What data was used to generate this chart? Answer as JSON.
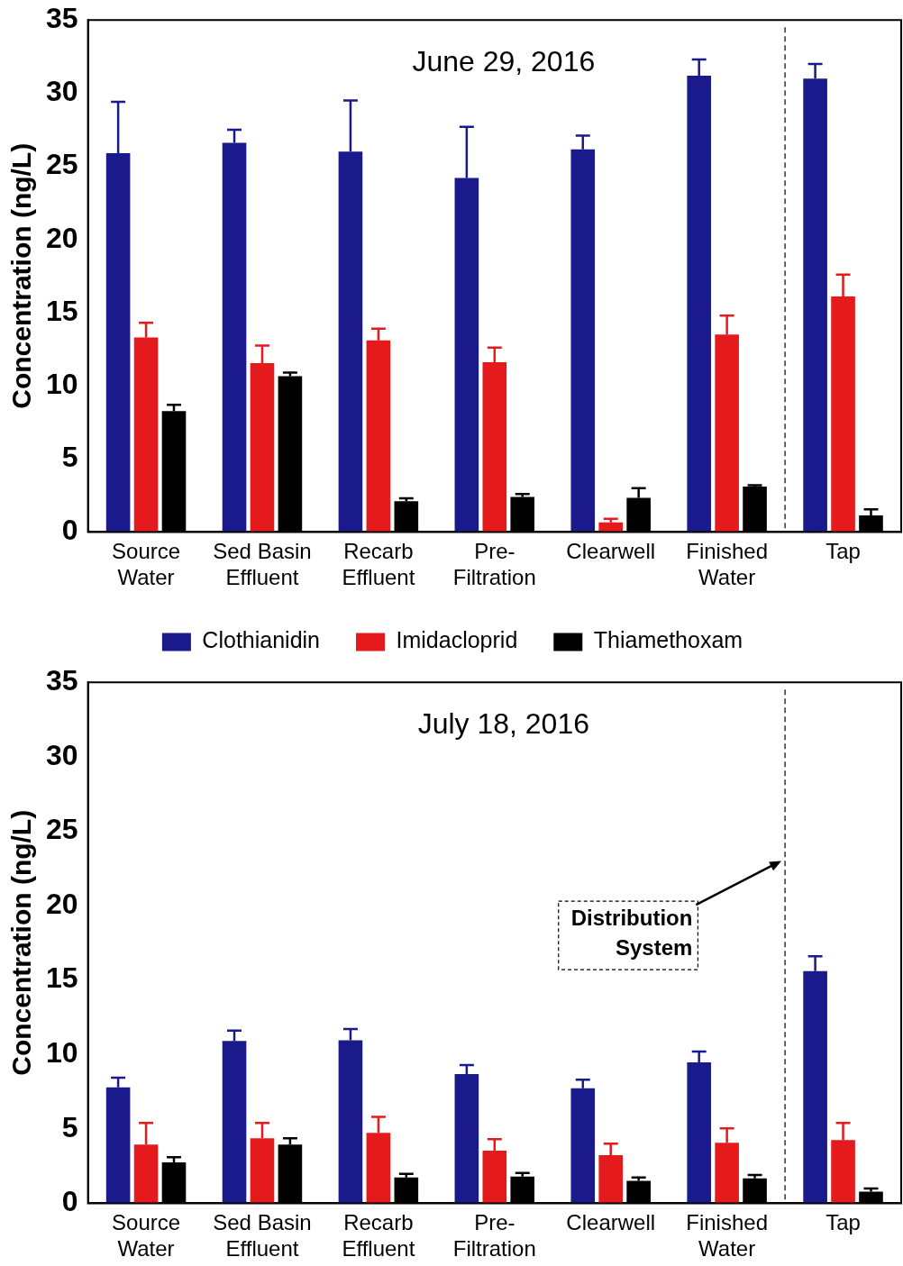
{
  "chart_data": [
    {
      "type": "bar",
      "title": "June 29, 2016",
      "ylabel": "Concentration (ng/L)",
      "categories": [
        "Source Water",
        "Sed Basin Effluent",
        "Recarb Effluent",
        "Pre-Filtration",
        "Clearwell",
        "Finished Water",
        "Tap"
      ],
      "series": [
        {
          "name": "Clothianidin",
          "color": "#1a1a8c",
          "values": [
            25.9,
            26.6,
            26.0,
            24.2,
            26.15,
            31.2,
            31.0
          ],
          "errors": [
            [
              25.9,
              29.4
            ],
            [
              26.6,
              27.5
            ],
            [
              26.0,
              29.5
            ],
            [
              24.2,
              27.7
            ],
            [
              26.15,
              27.1
            ],
            [
              31.2,
              32.3
            ],
            [
              31.0,
              32.0
            ]
          ]
        },
        {
          "name": "Imidacloprid",
          "color": "#e41a1c",
          "values": [
            13.3,
            11.55,
            13.1,
            11.6,
            0.66,
            13.5,
            16.1
          ],
          "errors": [
            [
              13.3,
              14.3
            ],
            [
              11.55,
              12.75
            ],
            [
              13.1,
              13.9
            ],
            [
              11.6,
              12.6
            ],
            [
              0.66,
              0.9
            ],
            [
              13.5,
              14.8
            ],
            [
              16.1,
              17.6
            ]
          ]
        },
        {
          "name": "Thiamethoxam",
          "color": "#000000",
          "values": [
            8.26,
            10.65,
            2.1,
            2.4,
            2.33,
            3.1,
            1.14
          ],
          "errors": [
            [
              8.26,
              8.7
            ],
            [
              10.65,
              10.9
            ],
            [
              2.1,
              2.3
            ],
            [
              2.4,
              2.6
            ],
            [
              2.33,
              3.0
            ],
            [
              3.1,
              3.2
            ],
            [
              1.14,
              1.55
            ]
          ]
        }
      ],
      "ylim": [
        0,
        35
      ],
      "yticks": [
        0,
        5,
        10,
        15,
        20,
        25,
        30,
        35
      ],
      "legend": "bottom"
    },
    {
      "type": "bar",
      "title": "July 18, 2016",
      "ylabel": "Concentration (ng/L)",
      "categories": [
        "Source Water",
        "Sed Basin Effluent",
        "Recarb Effluent",
        "Pre-Filtration",
        "Clearwell",
        "Finished Water",
        "Tap"
      ],
      "series": [
        {
          "color": "#1a1a8c",
          "values": [
            7.78,
            10.9,
            10.95,
            8.68,
            7.72,
            9.46,
            15.6
          ],
          "errors": [
            [
              7.78,
              8.44
            ],
            [
              10.9,
              11.6
            ],
            [
              10.95,
              11.7
            ],
            [
              8.68,
              9.28
            ],
            [
              7.72,
              8.3
            ],
            [
              9.46,
              10.2
            ],
            [
              15.6,
              16.6
            ]
          ]
        },
        {
          "color": "#e41a1c",
          "values": [
            3.95,
            4.37,
            4.73,
            3.53,
            3.23,
            4.07,
            4.25
          ],
          "errors": [
            [
              3.95,
              5.4
            ],
            [
              4.37,
              5.4
            ],
            [
              4.73,
              5.8
            ],
            [
              3.53,
              4.3
            ],
            [
              3.23,
              4.0
            ],
            [
              4.07,
              5.03
            ],
            [
              4.25,
              5.4
            ]
          ]
        },
        {
          "color": "#000000",
          "values": [
            2.75,
            3.95,
            1.74,
            1.8,
            1.5,
            1.68,
            0.78
          ],
          "errors": [
            [
              2.75,
              3.1
            ],
            [
              3.95,
              4.37
            ],
            [
              1.74,
              1.97
            ],
            [
              1.8,
              2.03
            ],
            [
              1.5,
              1.74
            ],
            [
              1.68,
              1.9
            ],
            [
              0.78,
              1.0
            ]
          ]
        }
      ],
      "ylim": [
        0,
        35
      ],
      "yticks": [
        0,
        5,
        10,
        15,
        20,
        25,
        30,
        35
      ],
      "annotations": [
        "Distribution System"
      ]
    }
  ]
}
